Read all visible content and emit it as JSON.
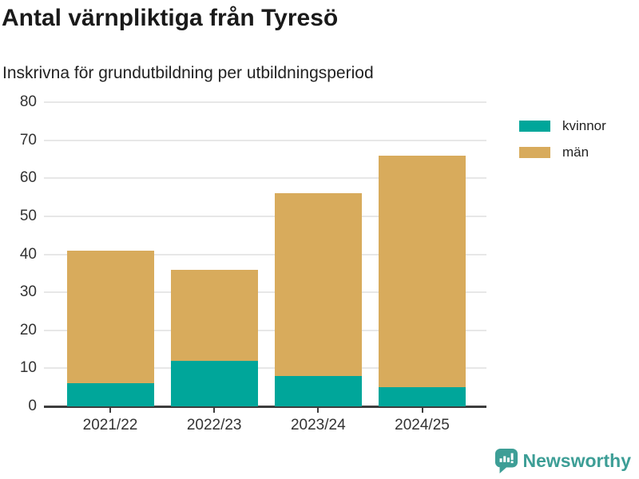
{
  "chart_data": {
    "type": "bar",
    "stacked": true,
    "title": "Antal värnpliktiga från Tyresö",
    "subtitle": "Inskrivna för grundutbildning per utbildningsperiod",
    "categories": [
      "2021/22",
      "2022/23",
      "2023/24",
      "2024/25"
    ],
    "series": [
      {
        "name": "kvinnor",
        "color": "#00a69a",
        "values": [
          6,
          12,
          8,
          5
        ]
      },
      {
        "name": "män",
        "color": "#d8ab5c",
        "values": [
          35,
          24,
          48,
          61
        ]
      }
    ],
    "totals": [
      41,
      36,
      56,
      66
    ],
    "xlabel": "",
    "ylabel": "",
    "ylim": [
      0,
      80
    ],
    "ytick_step": 10,
    "yticks": [
      0,
      10,
      20,
      30,
      40,
      50,
      60,
      70,
      80
    ],
    "grid": true,
    "legend_position": "right"
  },
  "colors": {
    "grid": "#e7e7e7",
    "axis": "#3d3d3d",
    "tick_text": "#333333",
    "title_text": "#1a1a1a",
    "brand_teal": "#3d9e96"
  },
  "branding": {
    "name": "Newsworthy",
    "icon": "bar-chart-speech-bubble-icon"
  }
}
